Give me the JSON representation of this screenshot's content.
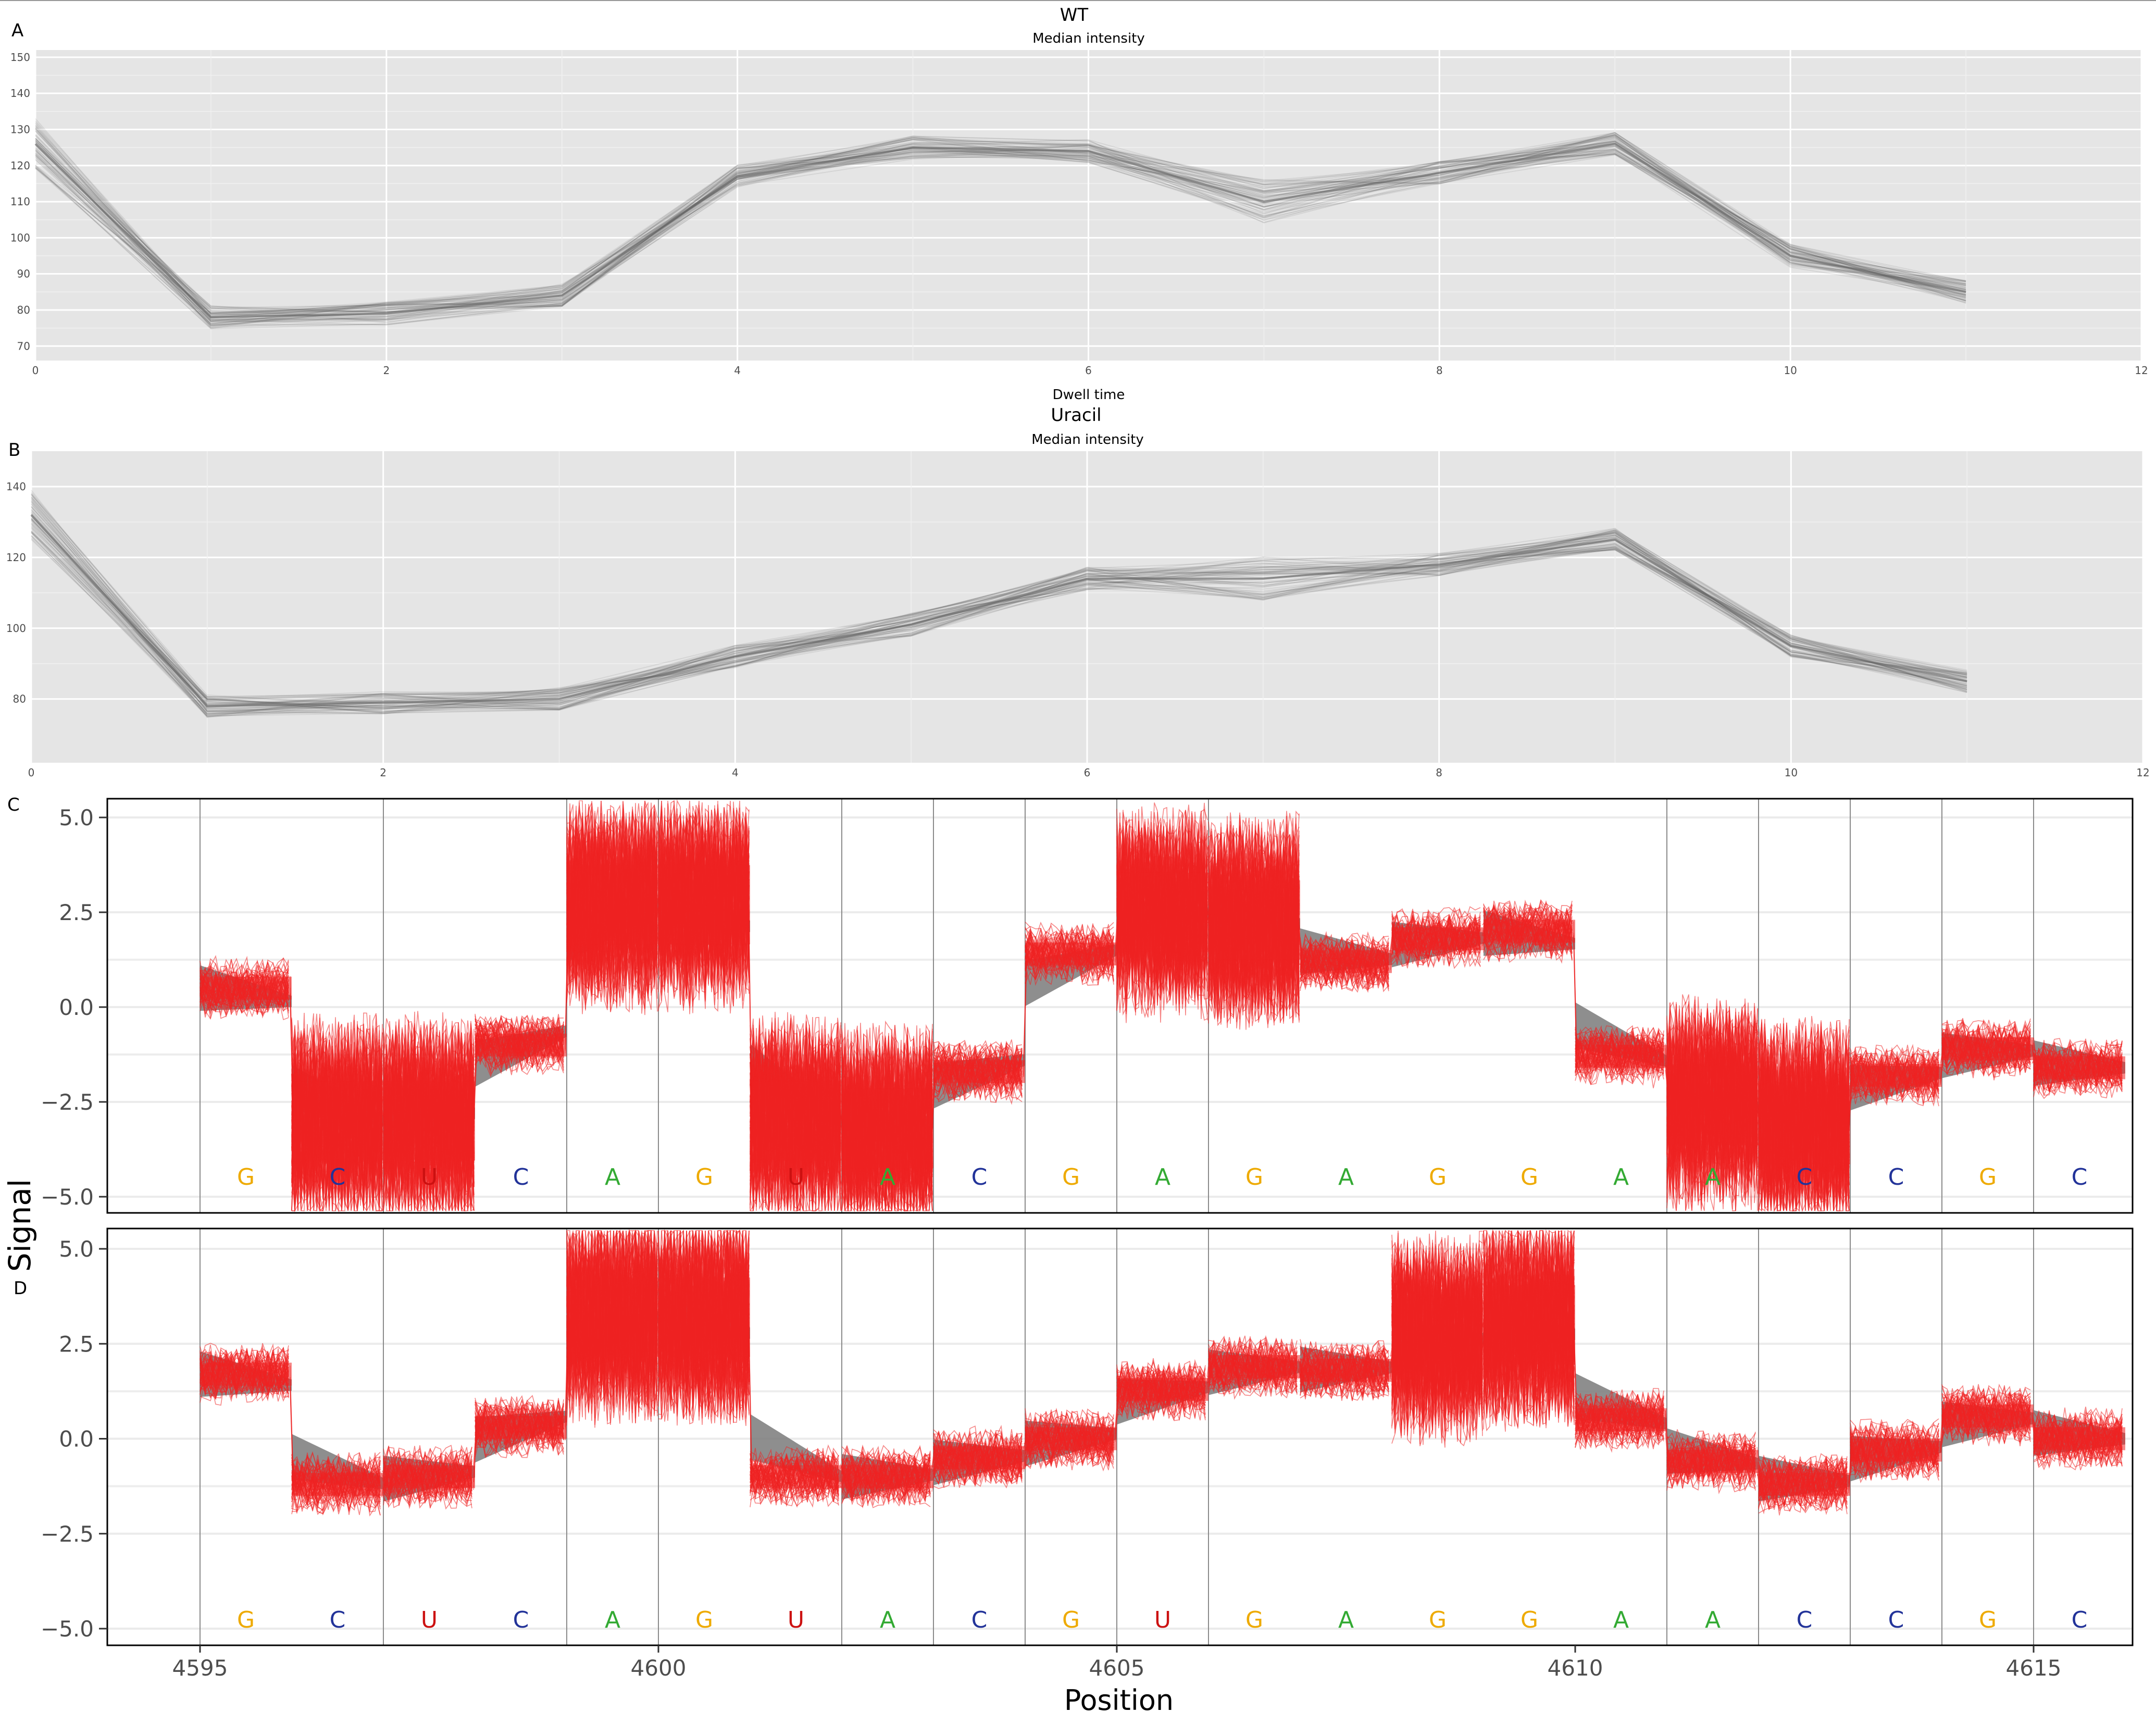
{
  "figure": {
    "panel_labels": [
      "A",
      "B",
      "C",
      "D"
    ]
  },
  "chart_data": [
    {
      "type": "line",
      "panel": "A",
      "title": "WT",
      "subtitle": "Median intensity",
      "xlabel": "Dwell time",
      "ylabel": "",
      "xlim": [
        0,
        12
      ],
      "ylim": [
        66,
        152
      ],
      "xticks": [
        0,
        2,
        4,
        6,
        8,
        10,
        12
      ],
      "yticks": [
        70,
        80,
        90,
        100,
        110,
        120,
        130,
        140,
        150
      ],
      "grid": true,
      "legend": "none",
      "series": [
        {
          "x": [
            0,
            1,
            2,
            3,
            4,
            5,
            6,
            7,
            8,
            9,
            10,
            11
          ],
          "values": [
            126,
            78,
            79,
            84,
            117,
            125,
            124,
            110,
            118,
            126,
            95,
            85
          ]
        }
      ],
      "colors": {
        "background": "#e5e5e5",
        "line": "#555555"
      }
    },
    {
      "type": "line",
      "panel": "B",
      "title": "Uracil",
      "subtitle": "Median intensity",
      "xlabel": "",
      "ylabel": "",
      "xlim": [
        0,
        12
      ],
      "ylim": [
        62,
        150
      ],
      "xticks": [
        0,
        2,
        4,
        6,
        8,
        10,
        12
      ],
      "yticks": [
        80,
        100,
        120,
        140
      ],
      "grid": true,
      "legend": "none",
      "series": [
        {
          "x": [
            0,
            1,
            2,
            3,
            4,
            5,
            6,
            7,
            8,
            9,
            10,
            11
          ],
          "values": [
            132,
            78,
            79,
            80,
            92,
            101,
            114,
            114,
            118,
            125,
            95,
            85
          ]
        }
      ],
      "colors": {
        "background": "#e5e5e5",
        "line": "#555555"
      }
    },
    {
      "type": "line",
      "panel": "C",
      "xlabel": "",
      "ylabel": "Signal",
      "xlim": [
        4592.9,
        4617.2
      ],
      "ylim": [
        -5.5,
        5.5
      ],
      "xticks": [
        4595,
        4600,
        4605,
        4610,
        4615
      ],
      "yticks": [
        5.0,
        2.5,
        0.0,
        -2.5,
        -5.0
      ],
      "ytick_labels": [
        "5.0",
        "2.5",
        "0.0",
        "−2.5",
        "−5.0"
      ],
      "grid": true,
      "legend": "none",
      "boundaries": [
        4595,
        4597,
        4599,
        4600,
        4602,
        4603,
        4604,
        4605,
        4606,
        4611,
        4612,
        4613,
        4614,
        4615
      ],
      "segments": [
        [
          4595,
          4596,
          0.5
        ],
        [
          4596,
          4597,
          -3.0
        ],
        [
          4597,
          4598,
          -3.0
        ],
        [
          4598,
          4599,
          -1.0
        ],
        [
          4599,
          4600,
          2.7
        ],
        [
          4600,
          4601,
          2.7
        ],
        [
          4601,
          4602,
          -3.0
        ],
        [
          4602,
          4603,
          -3.2
        ],
        [
          4603,
          4604,
          -1.7
        ],
        [
          4604,
          4605,
          1.4
        ],
        [
          4605,
          4606,
          2.5
        ],
        [
          4606,
          4607,
          2.3
        ],
        [
          4607,
          4608,
          1.2
        ],
        [
          4608,
          4609,
          1.8
        ],
        [
          4609,
          4610,
          2.0
        ],
        [
          4610,
          4611,
          -1.3
        ],
        [
          4611,
          4612,
          -2.6
        ],
        [
          4612,
          4613,
          -3.1
        ],
        [
          4613,
          4614,
          -1.8
        ],
        [
          4614,
          4615,
          -1.1
        ],
        [
          4615,
          4616,
          -1.6
        ]
      ],
      "bases": [
        "G",
        "C",
        "U",
        "C",
        "A",
        "G",
        "U",
        "A",
        "C",
        "G",
        "A",
        "G",
        "A",
        "G",
        "G",
        "A",
        "A",
        "C",
        "C",
        "G",
        "C"
      ],
      "colors": {
        "read": "#ee2222",
        "model": "#777777",
        "A": "#33aa33",
        "C": "#223399",
        "G": "#eeaa00",
        "U": "#cc1111"
      }
    },
    {
      "type": "line",
      "panel": "D",
      "xlabel": "Position",
      "ylabel": "Signal",
      "xlim": [
        4592.9,
        4617.2
      ],
      "ylim": [
        -5.5,
        5.5
      ],
      "xticks": [
        4595,
        4600,
        4605,
        4610,
        4615
      ],
      "yticks": [
        5.0,
        2.5,
        0.0,
        -2.5,
        -5.0
      ],
      "ytick_labels": [
        "5.0",
        "2.5",
        "0.0",
        "−2.5",
        "−5.0"
      ],
      "grid": true,
      "legend": "none",
      "boundaries": [
        4595,
        4597,
        4599,
        4600,
        4602,
        4603,
        4604,
        4605,
        4606,
        4611,
        4612,
        4613,
        4614,
        4615
      ],
      "segments": [
        [
          4595,
          4596,
          1.7
        ],
        [
          4596,
          4597,
          -1.2
        ],
        [
          4597,
          4598,
          -1.0
        ],
        [
          4598,
          4599,
          0.3
        ],
        [
          4599,
          4600,
          3.2
        ],
        [
          4600,
          4601,
          3.2
        ],
        [
          4601,
          4602,
          -1.0
        ],
        [
          4602,
          4603,
          -1.0
        ],
        [
          4603,
          4604,
          -0.5
        ],
        [
          4604,
          4605,
          0.0
        ],
        [
          4605,
          4606,
          1.3
        ],
        [
          4606,
          4607,
          1.9
        ],
        [
          4607,
          4608,
          1.8
        ],
        [
          4608,
          4609,
          2.6
        ],
        [
          4609,
          4610,
          3.0
        ],
        [
          4610,
          4611,
          0.5
        ],
        [
          4611,
          4612,
          -0.6
        ],
        [
          4612,
          4613,
          -1.2
        ],
        [
          4613,
          4614,
          -0.3
        ],
        [
          4614,
          4615,
          0.6
        ],
        [
          4615,
          4616,
          0.0
        ]
      ],
      "bases": [
        "G",
        "C",
        "U",
        "C",
        "A",
        "G",
        "U",
        "A",
        "C",
        "G",
        "U",
        "G",
        "A",
        "G",
        "G",
        "A",
        "A",
        "C",
        "C",
        "G",
        "C"
      ],
      "colors": {
        "read": "#ee2222",
        "model": "#777777",
        "A": "#33aa33",
        "C": "#223399",
        "G": "#eeaa00",
        "U": "#cc1111"
      }
    }
  ]
}
